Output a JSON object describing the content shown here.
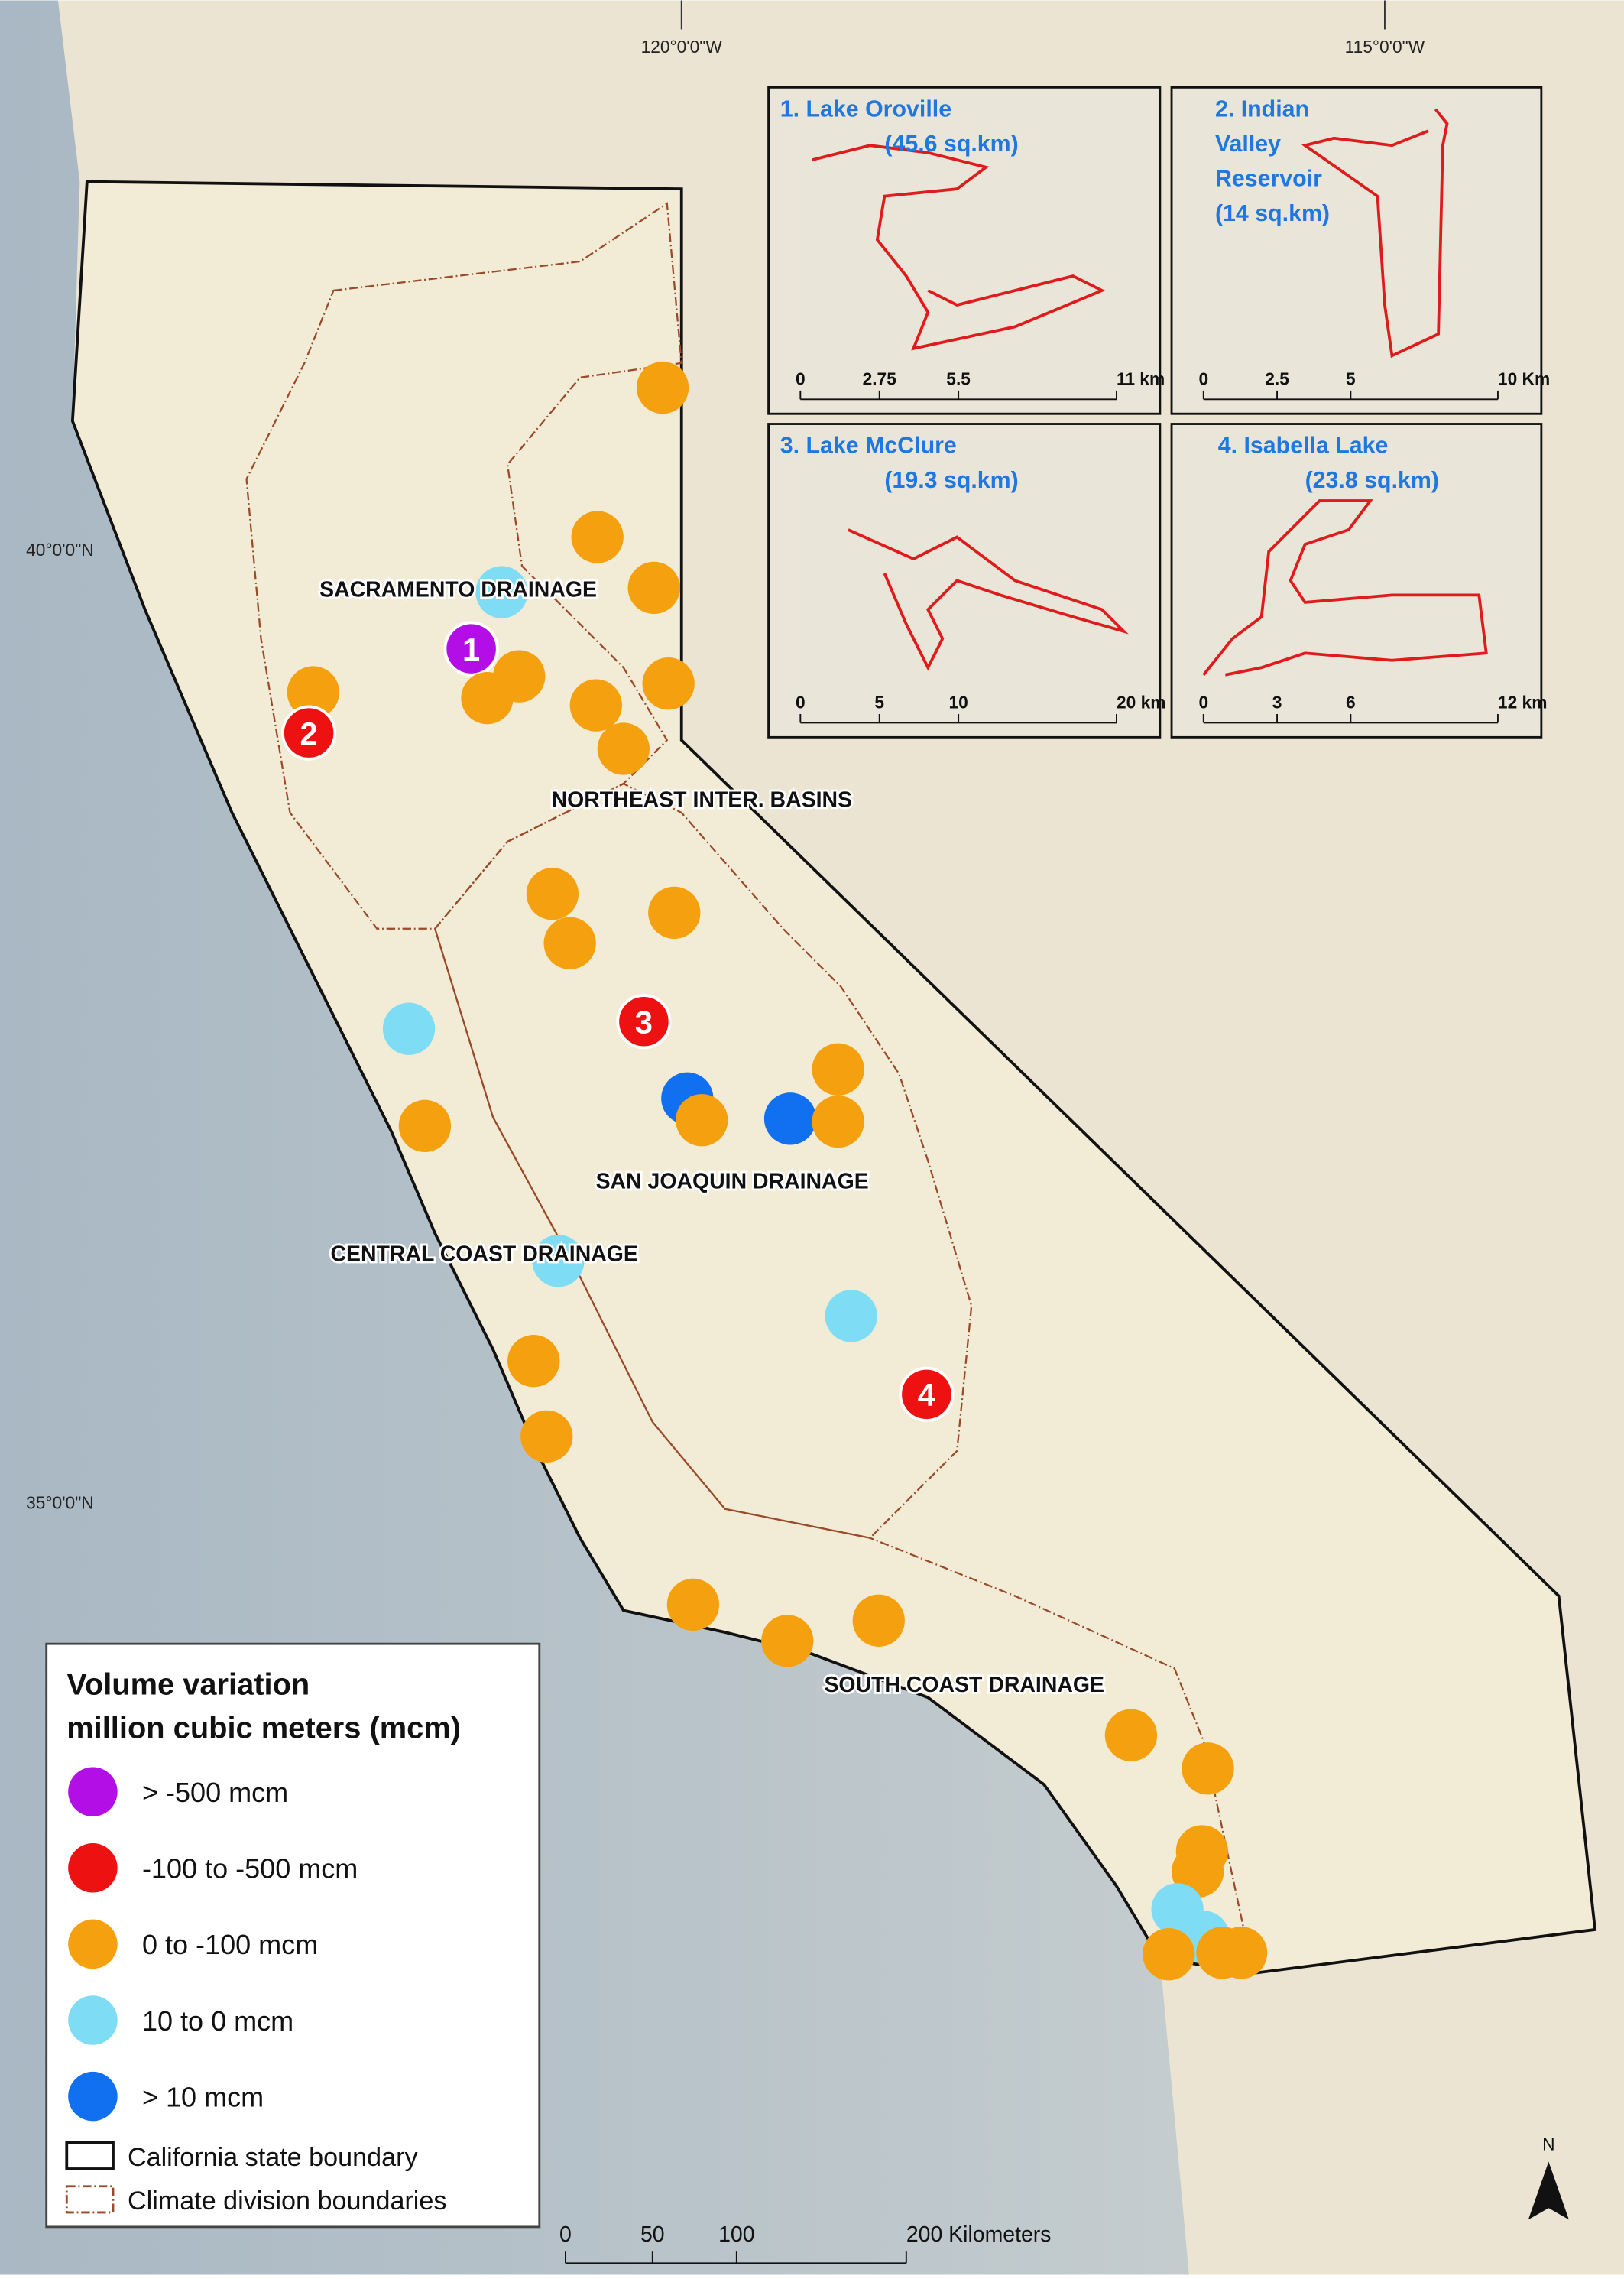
{
  "graticule": {
    "lon": [
      "120°0'0\"W",
      "115°0'0\"W"
    ],
    "lat": [
      "40°0'0\"N",
      "35°0'0\"N"
    ]
  },
  "insets": [
    {
      "title": [
        "1. Lake Oroville",
        "(45.6 sq.km)"
      ],
      "scale": [
        "0",
        "2.75",
        "5.5",
        "11 km"
      ]
    },
    {
      "title": [
        "2. Indian",
        "Valley",
        "Reservoir",
        "(14 sq.km)"
      ],
      "scale": [
        "0",
        "2.5",
        "5",
        "10 Km"
      ]
    },
    {
      "title": [
        "3. Lake McClure",
        "(19.3 sq.km)"
      ],
      "scale": [
        "0",
        "5",
        "10",
        "20 km"
      ]
    },
    {
      "title": [
        "4. Isabella Lake",
        "(23.8 sq.km)"
      ],
      "scale": [
        "0",
        "3",
        "6",
        "12 km"
      ]
    }
  ],
  "regions": [
    "SACRAMENTO DRAINAGE",
    "NORTHEAST INTER. BASINS",
    "SAN JOAQUIN DRAINAGE",
    "CENTRAL COAST DRAINAGE",
    "SOUTH COAST DRAINAGE"
  ],
  "site_labels": [
    "1",
    "2",
    "3",
    "4"
  ],
  "legend": {
    "title": [
      "Volume variation",
      "million cubic meters (mcm)"
    ],
    "items": [
      {
        "label": "> -500 mcm",
        "color": "#b40ee6"
      },
      {
        "label": "-100 to -500 mcm",
        "color": "#ee1111"
      },
      {
        "label": "0 to -100 mcm",
        "color": "#f5a10f"
      },
      {
        "label": "10 to 0 mcm",
        "color": "#7fdcf5"
      },
      {
        "label": "> 10 mcm",
        "color": "#1070ef"
      }
    ],
    "boundaries": [
      "California state boundary",
      "Climate division boundaries"
    ]
  },
  "scale_bar": [
    "0",
    "50",
    "100",
    "200 Kilometers"
  ],
  "north": "N"
}
